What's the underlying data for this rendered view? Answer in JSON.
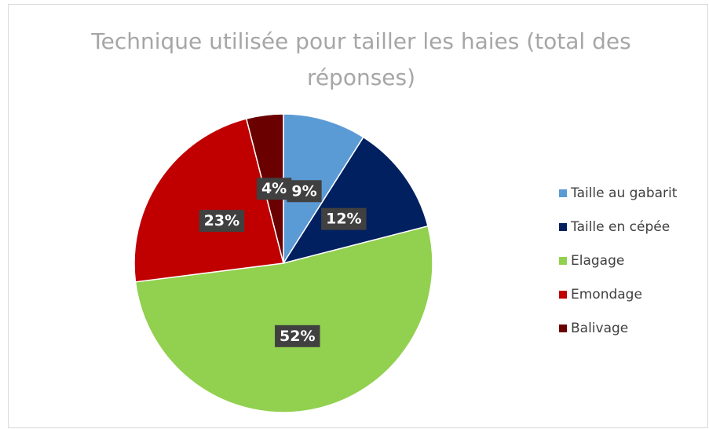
{
  "chart_data": {
    "type": "pie",
    "title": "Technique utilisée pour tailler les haies (total des réponses)",
    "categories": [
      "Taille au gabarit",
      "Taille en cépée",
      "Elagage",
      "Emondage",
      "Balivage"
    ],
    "values": [
      9,
      12,
      52,
      23,
      4
    ],
    "value_labels": [
      "9%",
      "12%",
      "52%",
      "23%",
      "4%"
    ],
    "colors": [
      "#5b9bd5",
      "#002060",
      "#92d050",
      "#c00000",
      "#6b0000"
    ],
    "legend": "right"
  }
}
